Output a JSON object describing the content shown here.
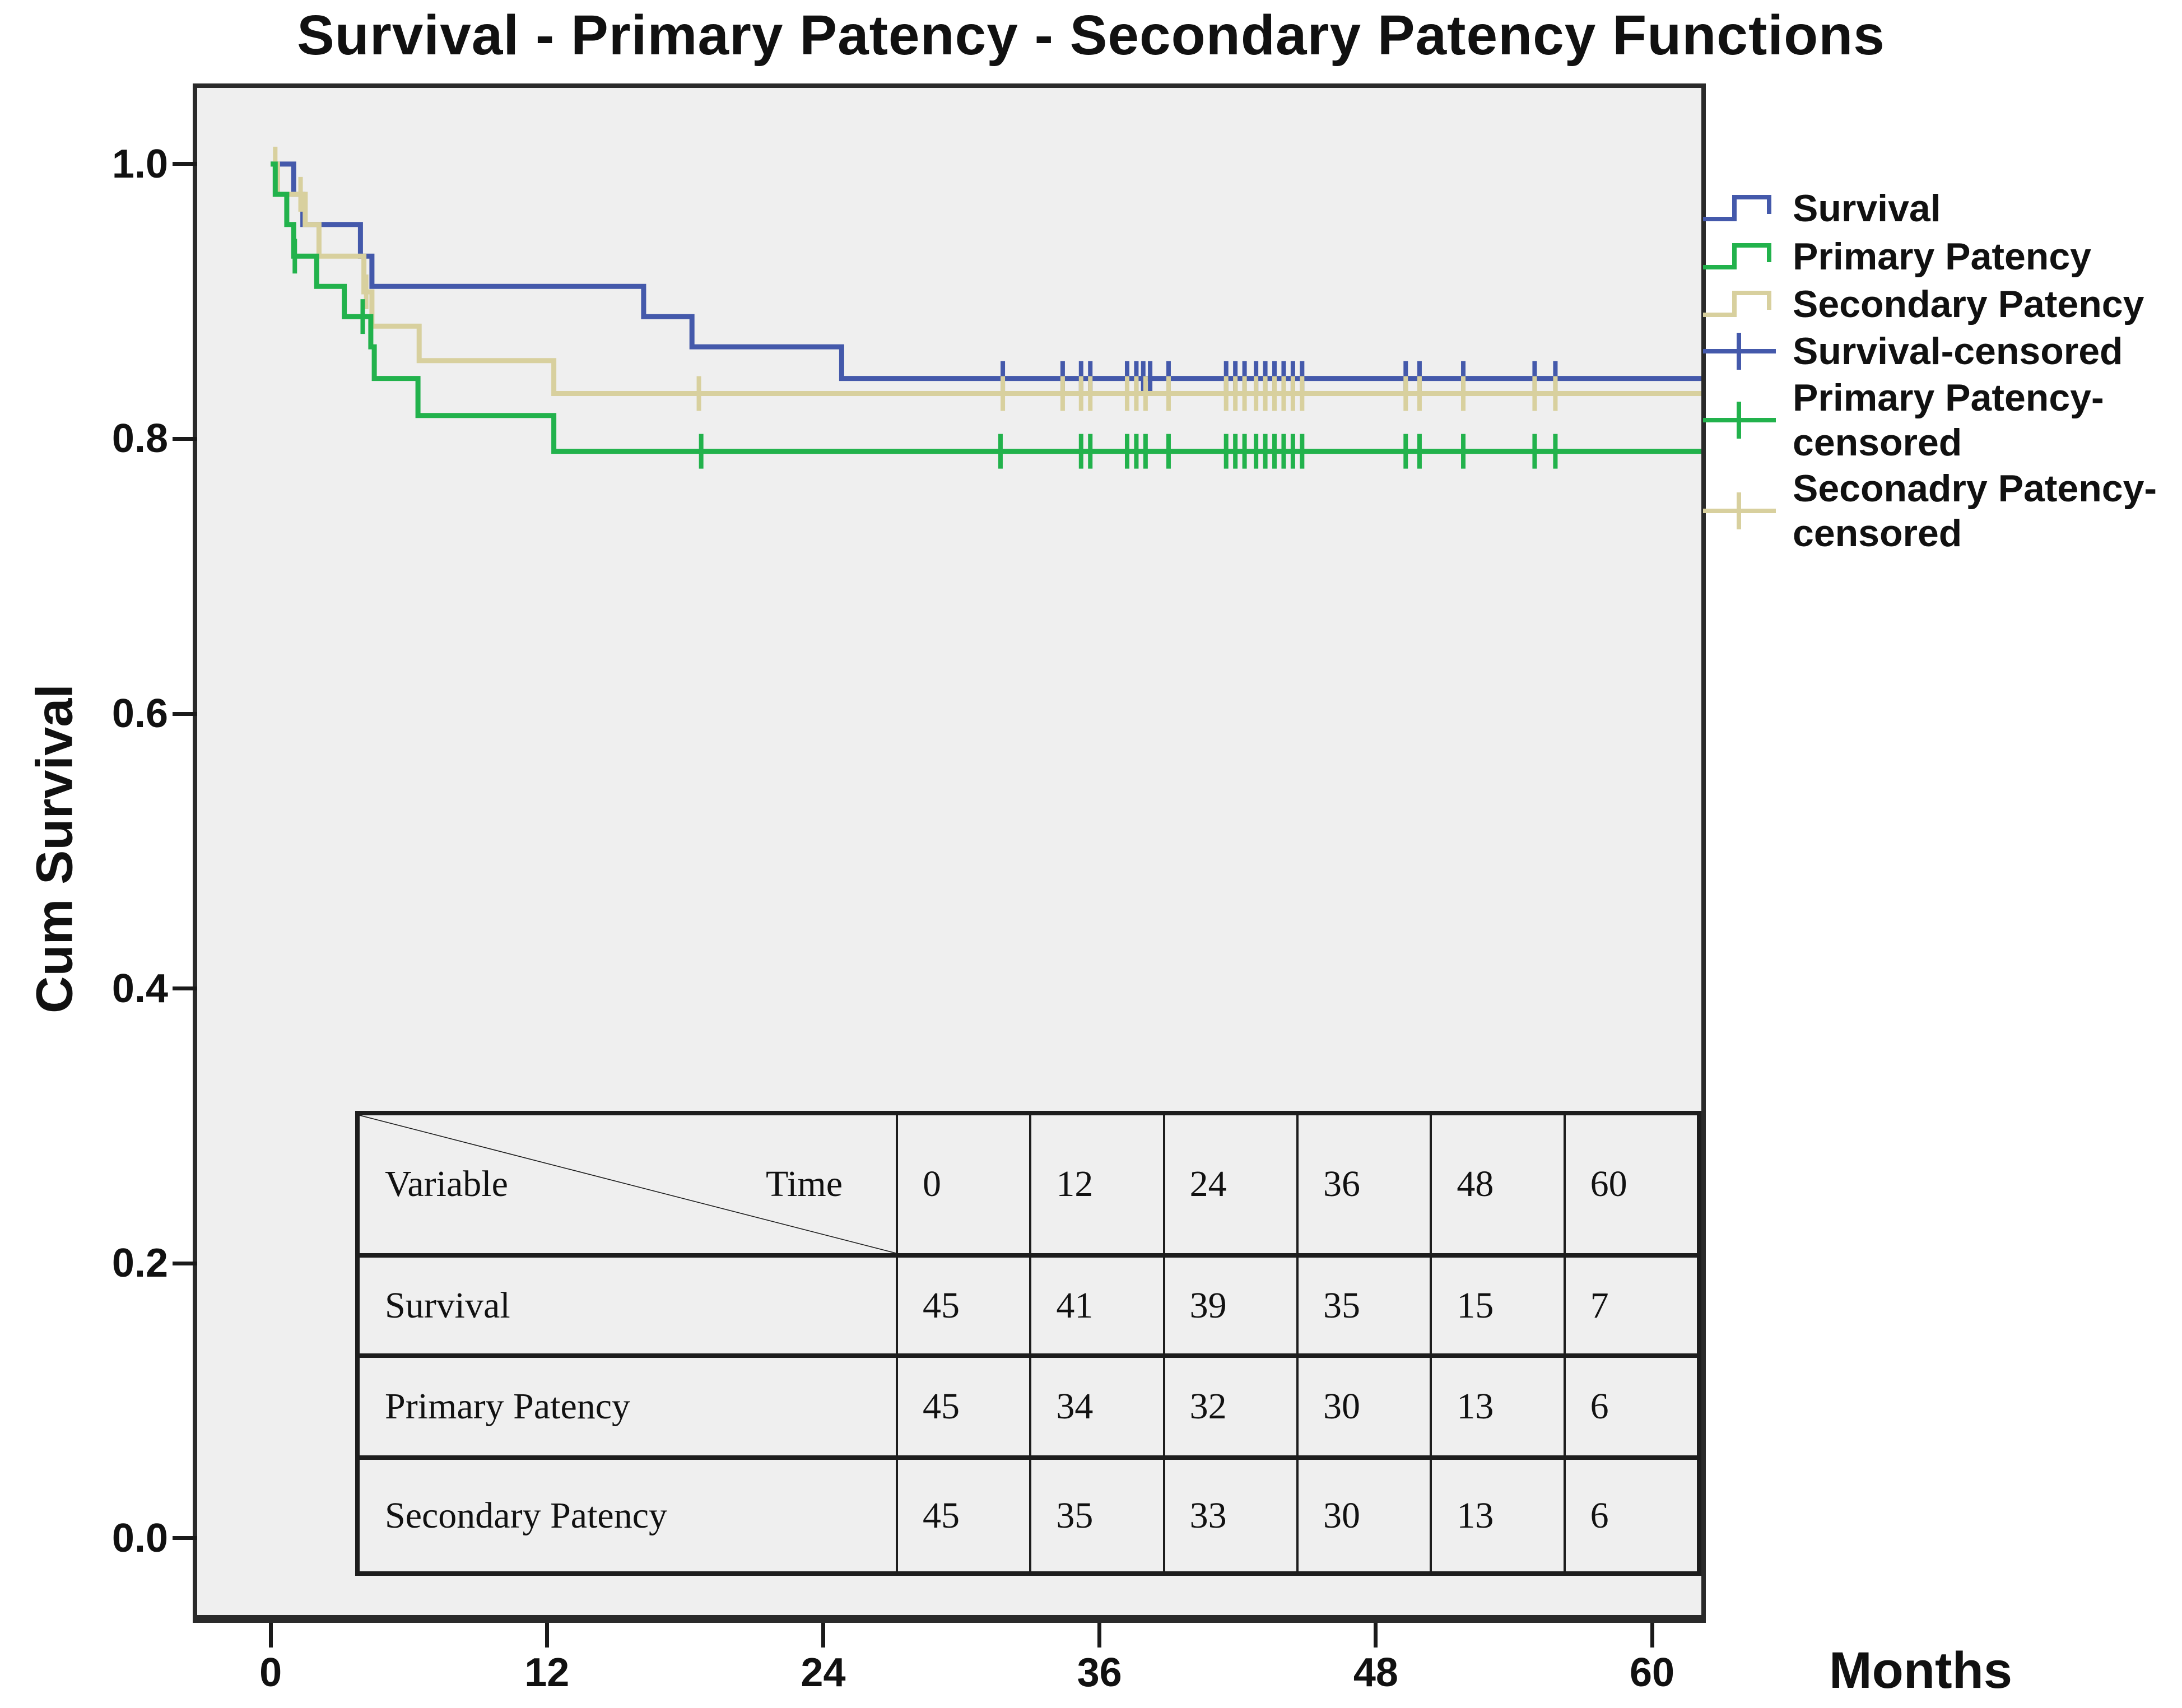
{
  "title": "Survival - Primary Patency - Secondary Patency Functions",
  "axes": {
    "y_label": "Cum Survival",
    "x_label": "Months",
    "x_tick_labels": [
      "0",
      "12",
      "24",
      "36",
      "48",
      "60"
    ],
    "y_tick_labels": [
      "1.0",
      "0.8",
      "0.6",
      "0.4",
      "0.2",
      "0.0"
    ]
  },
  "chart_data": {
    "type": "line",
    "subtype": "kaplan-meier-step",
    "title": "Survival - Primary Patency - Secondary Patency Functions",
    "xlabel": "Months",
    "ylabel": "Cum Survival",
    "xlim_visible": [
      -3.19,
      62.14
    ],
    "ylim_visible": [
      -0.0559,
      1.0554
    ],
    "x_ticks": [
      0,
      12,
      24,
      36,
      48,
      60
    ],
    "y_ticks": [
      1.0,
      0.8,
      0.6,
      0.4,
      0.2,
      0.0
    ],
    "grid": false,
    "legend_position": "right",
    "plot_background": "#efefef",
    "series": [
      {
        "name": "Survival",
        "color": "#4459ab",
        "steps": [
          [
            0,
            1.0
          ],
          [
            1.0,
            0.978
          ],
          [
            1.4,
            0.956
          ],
          [
            3.9,
            0.933
          ],
          [
            4.4,
            0.911
          ],
          [
            16.2,
            0.889
          ],
          [
            18.3,
            0.867
          ],
          [
            24.8,
            0.844
          ]
        ],
        "end": 62.14,
        "censors": [
          31.8,
          34.4,
          35.2,
          35.6,
          37.2,
          37.6,
          37.9,
          38.2,
          39.0,
          41.5,
          41.9,
          42.3,
          42.8,
          43.2,
          43.6,
          44.0,
          44.4,
          44.8,
          49.3,
          49.9,
          51.8,
          54.9,
          55.8
        ]
      },
      {
        "name": "Secondary Patency",
        "color": "#d8d09e",
        "steps": [
          [
            0,
            1.0
          ],
          [
            0.3,
            0.978
          ],
          [
            1.5,
            0.956
          ],
          [
            2.1,
            0.933
          ],
          [
            4.05,
            0.907
          ],
          [
            4.4,
            0.882
          ],
          [
            6.45,
            0.857
          ],
          [
            12.3,
            0.833
          ]
        ],
        "end": 62.14,
        "censors": [
          0.2,
          1.3,
          4.15,
          18.6,
          31.8,
          34.4,
          35.2,
          35.6,
          37.2,
          37.6,
          38.0,
          39.0,
          41.5,
          41.9,
          42.3,
          42.8,
          43.2,
          43.6,
          44.0,
          44.4,
          44.8,
          49.3,
          49.9,
          51.8,
          54.9,
          55.8
        ]
      },
      {
        "name": "Primary Patency",
        "color": "#22b24c",
        "steps": [
          [
            0,
            1.0
          ],
          [
            0.2,
            0.978
          ],
          [
            0.7,
            0.956
          ],
          [
            1.0,
            0.933
          ],
          [
            2.0,
            0.911
          ],
          [
            3.2,
            0.889
          ],
          [
            4.35,
            0.867
          ],
          [
            4.5,
            0.844
          ],
          [
            6.4,
            0.817
          ],
          [
            12.3,
            0.791
          ]
        ],
        "end": 62.14,
        "censors": [
          1.05,
          4.0,
          18.7,
          31.7,
          35.2,
          35.6,
          37.2,
          37.6,
          38.0,
          39.0,
          41.5,
          41.9,
          42.3,
          42.8,
          43.2,
          43.6,
          44.0,
          44.4,
          44.8,
          49.3,
          49.9,
          51.8,
          54.9,
          55.8
        ]
      }
    ]
  },
  "legend": {
    "entries": [
      {
        "lines": [
          "Survival"
        ],
        "type": "step",
        "color": "#4459ab"
      },
      {
        "lines": [
          "Primary Patency"
        ],
        "type": "step",
        "color": "#22b24c"
      },
      {
        "lines": [
          "Secondary Patency"
        ],
        "type": "step",
        "color": "#d8d09e"
      },
      {
        "lines": [
          "Survival-censored"
        ],
        "type": "censored",
        "color": "#4459ab"
      },
      {
        "lines": [
          "Primary Patency-",
          "censored"
        ],
        "type": "censored",
        "color": "#22b24c"
      },
      {
        "lines": [
          "Seconadry Patency-",
          "censored"
        ],
        "type": "censored",
        "color": "#d8d09e"
      }
    ]
  },
  "risk_table": {
    "corner_variable": "Variable",
    "corner_time": "Time",
    "time_points": [
      "0",
      "12",
      "24",
      "36",
      "48",
      "60"
    ],
    "rows": [
      {
        "label": "Survival",
        "values": [
          "45",
          "41",
          "39",
          "35",
          "15",
          "7"
        ]
      },
      {
        "label": "Primary Patency",
        "values": [
          "45",
          "34",
          "32",
          "30",
          "13",
          "6"
        ]
      },
      {
        "label": "Secondary Patency",
        "values": [
          "45",
          "35",
          "33",
          "30",
          "13",
          "6"
        ]
      }
    ]
  }
}
